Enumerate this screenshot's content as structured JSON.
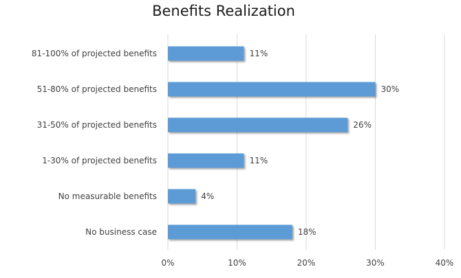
{
  "chart_data": {
    "type": "bar",
    "orientation": "horizontal",
    "title": "Benefits Realization",
    "categories": [
      "81-100% of projected benefits",
      "51-80% of projected benefits",
      "31-50% of projected benefits",
      "1-30% of projected benefits",
      "No measurable benefits",
      "No business case"
    ],
    "values": [
      11,
      30,
      26,
      11,
      4,
      18
    ],
    "data_labels": [
      "11%",
      "30%",
      "26%",
      "11%",
      "4%",
      "18%"
    ],
    "x_ticks": [
      "0%",
      "10%",
      "20%",
      "30%",
      "40%"
    ],
    "xlim": [
      0,
      40
    ],
    "grid": "vertical",
    "legend": "none",
    "bar_color": "#5b9bd5",
    "xlabel": "",
    "ylabel": ""
  }
}
